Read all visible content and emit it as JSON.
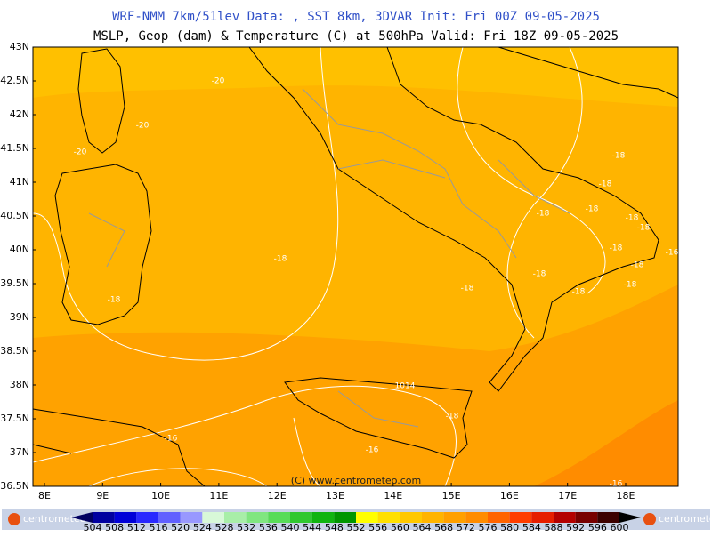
{
  "header": {
    "title": "WRF-NMM 7km/51lev  Data: , SST 8km, 3DVAR  Init: Fri 00Z 09-05-2025",
    "subtitle": "MSLP, Geop (dam) & Temperature (C) at 500hPa  Valid: Fri 18Z 09-05-2025"
  },
  "map": {
    "lat_labels": [
      "43N",
      "42.5N",
      "42N",
      "41.5N",
      "41N",
      "40.5N",
      "40N",
      "39.5N",
      "39N",
      "38.5N",
      "38N",
      "37.5N",
      "37N",
      "36.5N"
    ],
    "lon_labels": [
      "8E",
      "9E",
      "10E",
      "11E",
      "12E",
      "13E",
      "14E",
      "15E",
      "16E",
      "17E",
      "18E"
    ],
    "contour_labels": [
      "-20",
      "-20",
      "-20",
      "-18",
      "-18",
      "-18",
      "-18",
      "-18",
      "-18",
      "-18",
      "-18",
      "-18",
      "-18",
      "-18",
      "-18",
      "-18",
      "-18",
      "-18",
      "-16",
      "-16",
      "-16",
      "-16",
      "1014"
    ],
    "credit": "(C) www.centrometeo.com"
  },
  "colorbar": {
    "labels": [
      "504",
      "508",
      "512",
      "516",
      "520",
      "524",
      "528",
      "532",
      "536",
      "540",
      "544",
      "548",
      "552",
      "556",
      "560",
      "564",
      "568",
      "572",
      "576",
      "580",
      "584",
      "588",
      "592",
      "596",
      "600"
    ],
    "colors": [
      "#000060",
      "#0000a0",
      "#0000d8",
      "#2828ff",
      "#6060ff",
      "#9898ff",
      "#d8f8d8",
      "#a8eea8",
      "#80e680",
      "#58dc58",
      "#30c830",
      "#10b410",
      "#009600",
      "#ffff00",
      "#ffe000",
      "#ffc800",
      "#ffb400",
      "#ffa000",
      "#ff8c00",
      "#ff6400",
      "#ff3c00",
      "#e61e00",
      "#b40000",
      "#780000",
      "#3c0000",
      "#000000"
    ]
  },
  "logos": [
    "centrometeo",
    "centrometeo"
  ]
}
